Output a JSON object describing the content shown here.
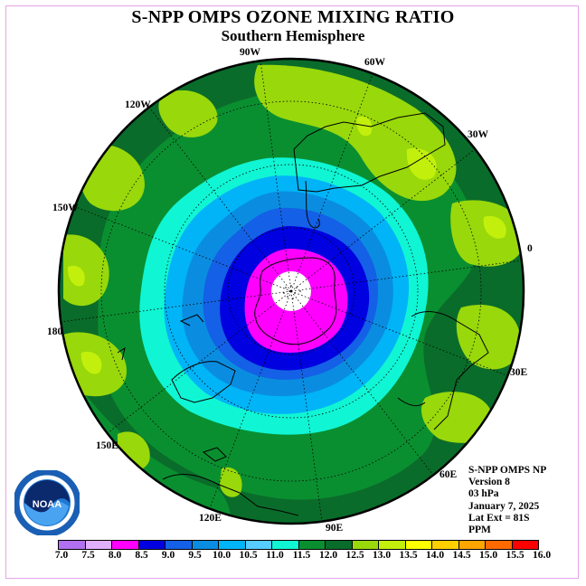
{
  "header": {
    "title": "S-NPP OMPS OZONE MIXING RATIO",
    "subtitle": "Southern Hemisphere"
  },
  "map": {
    "projection": "south polar stereographic",
    "longitude_labels": [
      "90W",
      "60W",
      "30W",
      "0",
      "30E",
      "60E",
      "90E",
      "120E",
      "150E",
      "180",
      "150W",
      "120W"
    ],
    "contour_levels_ppm": [
      11.0,
      11.5,
      12.0,
      12.5,
      13.0,
      13.5
    ],
    "colors": {
      "ocean_dark": "#0a6c2a",
      "mid_green": "#0a8f30",
      "lime": "#99d80a",
      "yellow_green": "#c2f00c",
      "cyan": "#10f5d4",
      "light_blue": "#00b4f7",
      "mid_blue": "#0a8de0",
      "deep_blue": "#1460e6",
      "dark_blue": "#0000e0",
      "magenta": "#ff00ff",
      "pole_white": "#ffffff"
    }
  },
  "info": {
    "line1": "S-NPP OMPS NP",
    "line2": "Version 8",
    "line3": "03 hPa",
    "line4": "January 7, 2025",
    "line5": "Lat Ext = 81S",
    "line6": "PPM"
  },
  "logo": {
    "text": "NOAA",
    "ring_text": "NATIONAL OCEANIC AND ATMOSPHERIC ADMINISTRATION · U.S. DEPARTMENT OF COMMERCE"
  },
  "colorbar": {
    "ticks": [
      "7.0",
      "7.5",
      "8.0",
      "8.5",
      "9.0",
      "9.5",
      "10.0",
      "10.5",
      "11.0",
      "11.5",
      "12.0",
      "12.5",
      "13.0",
      "13.5",
      "14.0",
      "14.5",
      "15.0",
      "15.5",
      "16.0"
    ],
    "colors": [
      "#b070f0",
      "#e0b0ff",
      "#ff00ff",
      "#0000e0",
      "#1460e6",
      "#0a8de0",
      "#00b4f7",
      "#56ccff",
      "#10f5d4",
      "#0a8f30",
      "#0a6c2a",
      "#99d80a",
      "#c2f00c",
      "#ffff00",
      "#ffd000",
      "#ffa500",
      "#ff6a00",
      "#ff0000",
      "#8b5a2b"
    ]
  }
}
